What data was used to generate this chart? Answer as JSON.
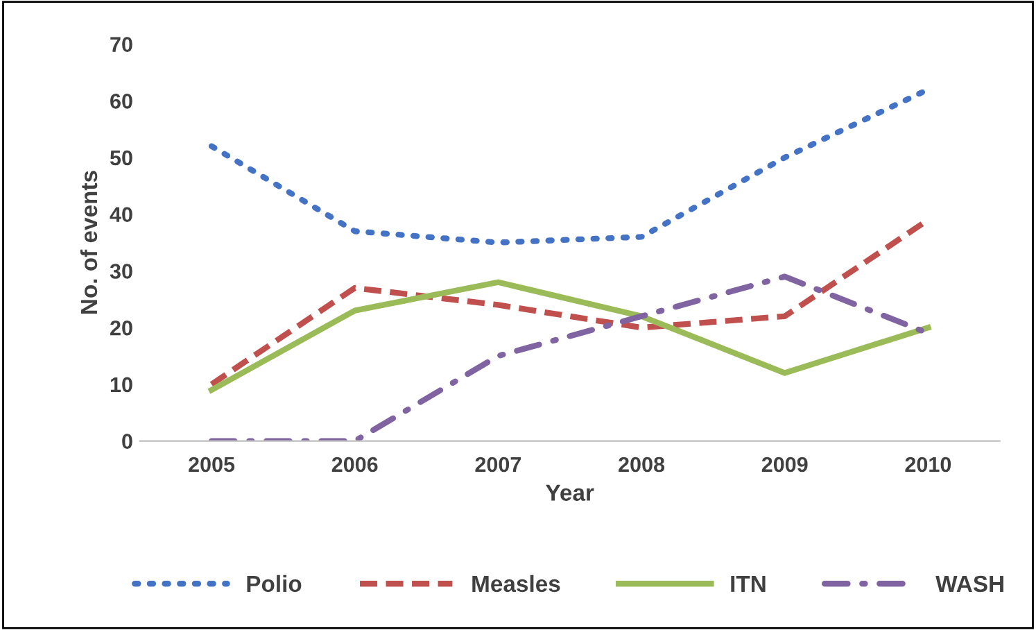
{
  "chart_data": {
    "type": "line",
    "xlabel": "Year",
    "ylabel": "No. of events",
    "categories": [
      "2005",
      "2006",
      "2007",
      "2008",
      "2009",
      "2010"
    ],
    "series": [
      {
        "name": "Polio",
        "color": "#4472c4",
        "line_style": "dotted",
        "values": [
          52,
          37,
          35,
          36,
          50,
          62
        ]
      },
      {
        "name": "Measles",
        "color": "#c0504d",
        "line_style": "dashed",
        "values": [
          10,
          27,
          24,
          20,
          22,
          39
        ]
      },
      {
        "name": "ITN",
        "color": "#9bbb59",
        "line_style": "solid",
        "values": [
          9,
          23,
          28,
          22,
          12,
          20
        ]
      },
      {
        "name": "WASH",
        "color": "#8064a2",
        "line_style": "dashdot",
        "values": [
          0,
          0,
          15,
          22,
          29,
          19
        ]
      }
    ],
    "ylim": [
      0,
      70
    ],
    "yticks": [
      0,
      10,
      20,
      30,
      40,
      50,
      60,
      70
    ],
    "grid": false,
    "legend": "bottom"
  }
}
